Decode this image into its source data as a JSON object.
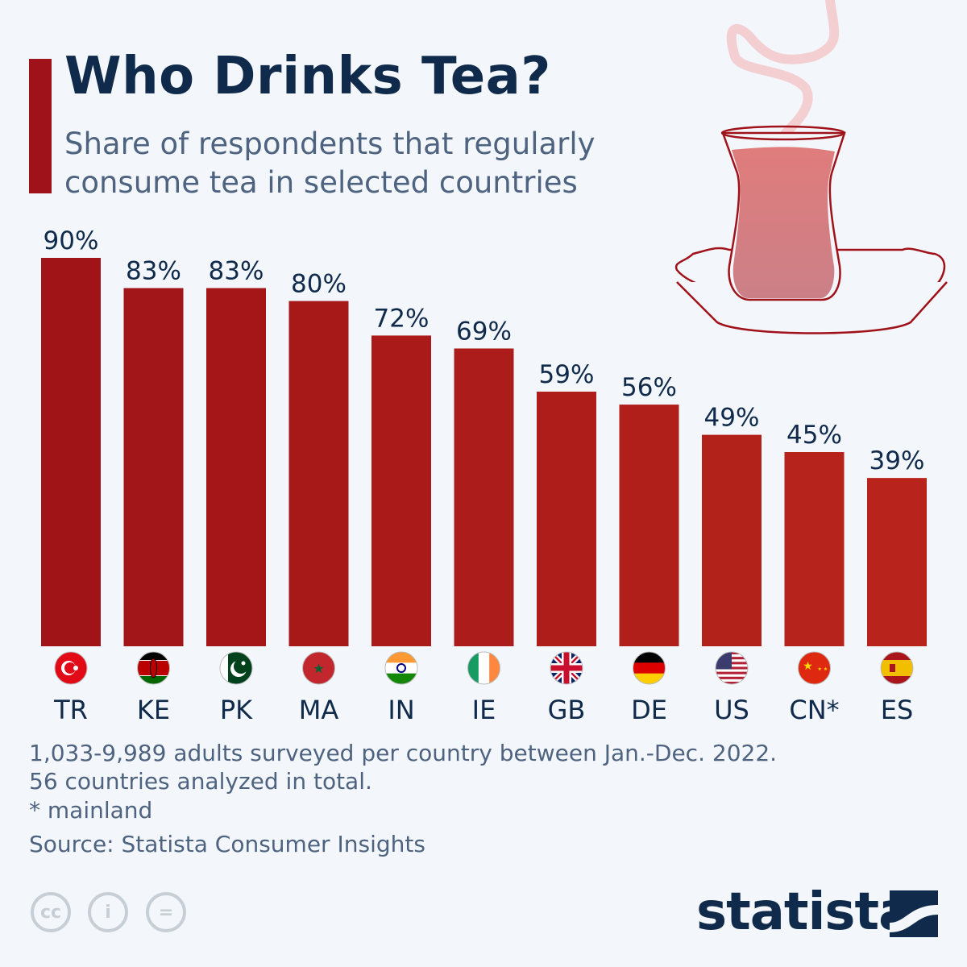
{
  "title": "Who Drinks Tea?",
  "subtitle": "Share of respondents that regularly consume tea in selected countries",
  "chart_data": {
    "type": "bar",
    "categories": [
      "TR",
      "KE",
      "PK",
      "MA",
      "IN",
      "IE",
      "GB",
      "DE",
      "US",
      "CN*",
      "ES"
    ],
    "values": [
      90,
      83,
      83,
      80,
      72,
      69,
      59,
      56,
      49,
      45,
      39
    ],
    "data_labels": [
      "90%",
      "83%",
      "83%",
      "80%",
      "72%",
      "69%",
      "59%",
      "56%",
      "49%",
      "45%",
      "39%"
    ],
    "flags": [
      "turkey",
      "kenya",
      "pakistan",
      "morocco",
      "india",
      "ireland",
      "united-kingdom",
      "germany",
      "united-states",
      "china",
      "spain"
    ],
    "unit": "%",
    "ylim": [
      0,
      90
    ],
    "grid": false,
    "colors": {
      "start": "#a01317",
      "end": "#b8241c"
    }
  },
  "notes": [
    "1,033-9,989 adults surveyed per country between Jan.-Dec. 2022.",
    "56 countries analyzed in total.",
    "* mainland"
  ],
  "source": "Source: Statista Consumer Insights",
  "license_icons": [
    "cc-icon",
    "attribution-icon",
    "no-derivatives-icon"
  ],
  "license_glyphs": [
    "cc",
    "i",
    "="
  ],
  "logo": "statista"
}
